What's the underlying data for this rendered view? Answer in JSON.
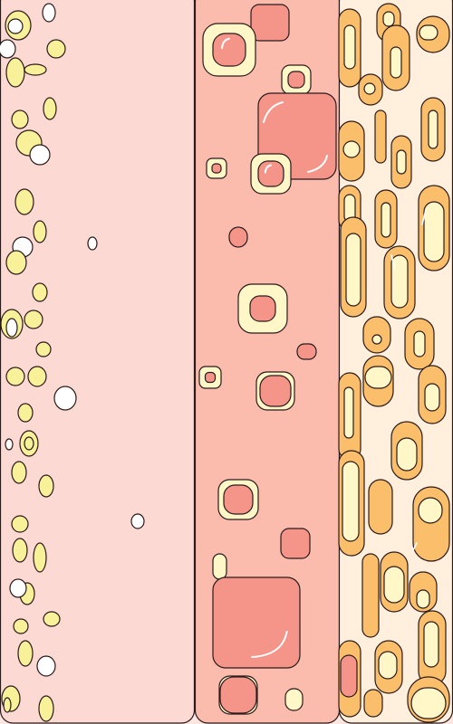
{
  "colors": {
    "panel_left": "#fcd9d3",
    "panel_middle": "#fbbcae",
    "panel_right": "#ffefdc",
    "outline": "#2a1a1a",
    "cream": "#fff7c8",
    "yellow": "#f8f19a",
    "white": "#ffffff",
    "salmon": "#f5958a",
    "orange": "#fbbf6c",
    "highlight": "#ffffff"
  },
  "panels": [
    {
      "name": "panel-left",
      "pattern": "scattered-ovals"
    },
    {
      "name": "panel-middle",
      "pattern": "rounded-squares"
    },
    {
      "name": "panel-right",
      "pattern": "capsules"
    }
  ]
}
